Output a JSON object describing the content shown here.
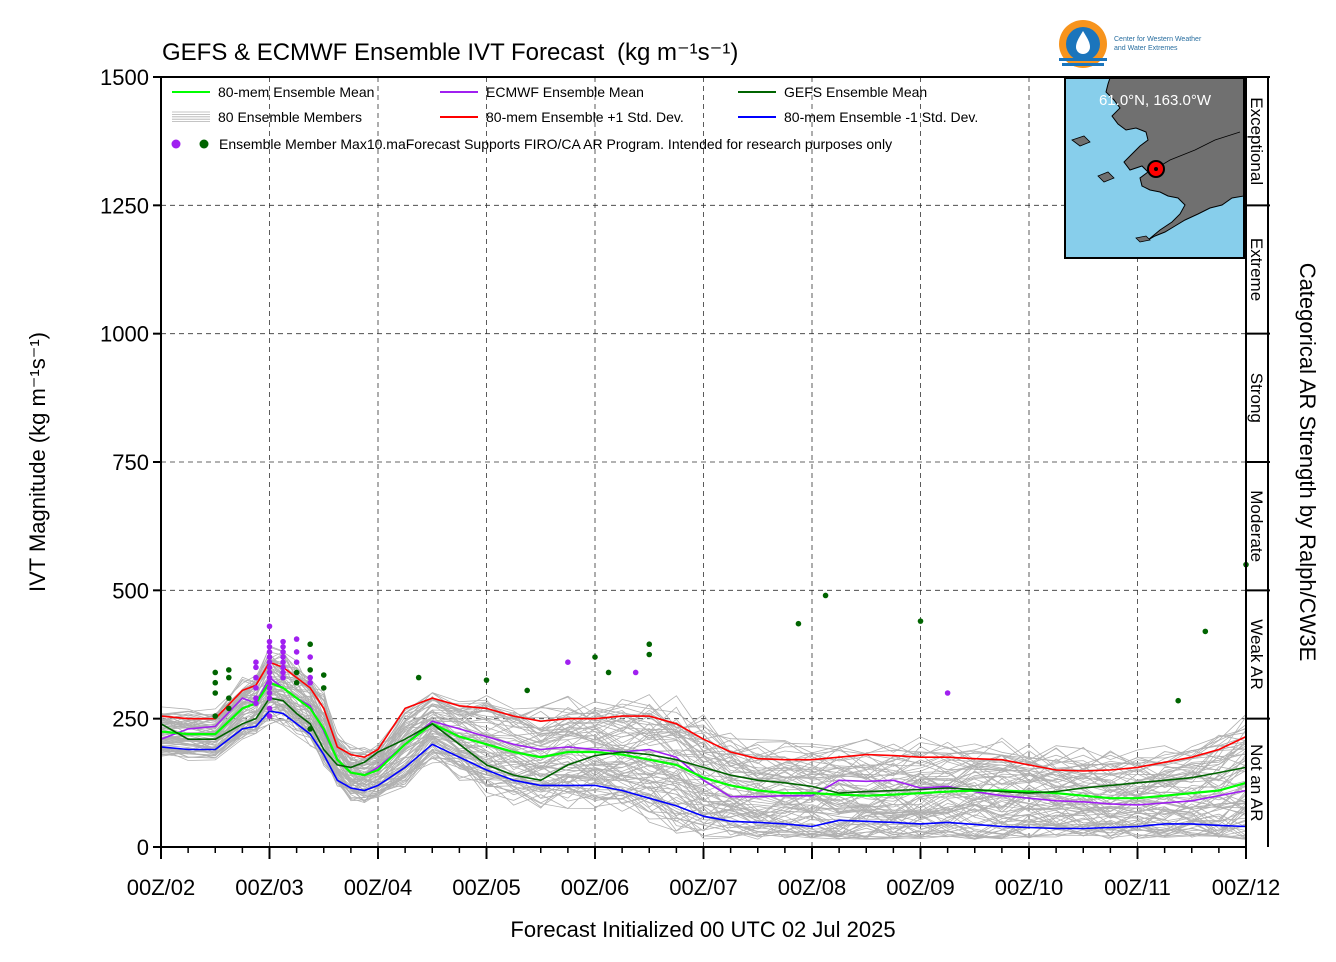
{
  "chart_data": {
    "type": "line",
    "title": "GEFS & ECMWF Ensemble IVT Forecast",
    "title_units": "(kg m⁻¹s⁻¹)",
    "xlabel": "Forecast Initialized 00 UTC 02 Jul 2025",
    "ylabel": "IVT Magnitude (kg m⁻¹s⁻¹)",
    "right_label": "Categorical AR Strength by Ralph/CW3E",
    "ylim": [
      0,
      1500
    ],
    "xlim": [
      0,
      240
    ],
    "yticks": [
      0,
      250,
      500,
      750,
      1000,
      1250,
      1500
    ],
    "xticks": [
      {
        "h": 0,
        "label": "00Z/02"
      },
      {
        "h": 24,
        "label": "00Z/03"
      },
      {
        "h": 48,
        "label": "00Z/04"
      },
      {
        "h": 72,
        "label": "00Z/05"
      },
      {
        "h": 96,
        "label": "00Z/06"
      },
      {
        "h": 120,
        "label": "00Z/07"
      },
      {
        "h": 144,
        "label": "00Z/08"
      },
      {
        "h": 168,
        "label": "00Z/09"
      },
      {
        "h": 192,
        "label": "00Z/10"
      },
      {
        "h": 216,
        "label": "00Z/11"
      },
      {
        "h": 240,
        "label": "00Z/12"
      }
    ],
    "grid": true,
    "categories": [
      {
        "label": "Not an AR",
        "lo": 0,
        "hi": 250
      },
      {
        "label": "Weak AR",
        "lo": 250,
        "hi": 500
      },
      {
        "label": "Moderate",
        "lo": 500,
        "hi": 750
      },
      {
        "label": "Strong",
        "lo": 750,
        "hi": 1000
      },
      {
        "label": "Extreme",
        "lo": 1000,
        "hi": 1250
      },
      {
        "label": "Exceptional",
        "lo": 1250,
        "hi": 1500
      }
    ],
    "legend": {
      "placement": "top-left",
      "items": [
        {
          "label": "80-mem Ensemble Mean",
          "color": "#00ff00",
          "kind": "line"
        },
        {
          "label": "ECMWF Ensemble Mean",
          "color": "#a020f0",
          "kind": "line"
        },
        {
          "label": "GEFS Ensemble Mean",
          "color": "#006400",
          "kind": "line"
        },
        {
          "label": "80 Ensemble Members",
          "color": "#b0b0b0",
          "kind": "members"
        },
        {
          "label": "80-mem Ensemble +1 Std. Dev.",
          "color": "#ff0000",
          "kind": "line"
        },
        {
          "label": "80-mem Ensemble -1 Std. Dev.",
          "color": "#0000ff",
          "kind": "line"
        }
      ],
      "dots_label": "Ensemble Member Max10.maForecast Supports FIRO/CA AR Program. Intended for research purposes only",
      "dot_colors": [
        "#a020f0",
        "#006400"
      ]
    },
    "member_count": 80,
    "member_color": "#b0b0b0",
    "series": [
      {
        "name": "80-mem Ensemble Mean",
        "color": "#00ff00",
        "x": [
          0,
          6,
          12,
          18,
          21,
          24,
          27,
          30,
          33,
          36,
          39,
          42,
          45,
          48,
          54,
          60,
          66,
          72,
          78,
          84,
          90,
          96,
          102,
          108,
          114,
          120,
          126,
          132,
          138,
          144,
          150,
          156,
          162,
          168,
          174,
          180,
          186,
          192,
          198,
          204,
          210,
          216,
          222,
          228,
          234,
          240
        ],
        "values": [
          225,
          220,
          220,
          270,
          280,
          320,
          310,
          290,
          270,
          230,
          170,
          145,
          140,
          150,
          200,
          240,
          215,
          200,
          185,
          175,
          185,
          185,
          180,
          170,
          160,
          135,
          120,
          110,
          105,
          105,
          102,
          100,
          102,
          105,
          108,
          110,
          110,
          108,
          105,
          100,
          95,
          95,
          100,
          105,
          110,
          125
        ]
      },
      {
        "name": "ECMWF Ensemble Mean",
        "color": "#a020f0",
        "x": [
          0,
          6,
          12,
          18,
          21,
          24,
          27,
          30,
          33,
          36,
          39,
          42,
          45,
          48,
          54,
          60,
          66,
          72,
          78,
          84,
          90,
          96,
          102,
          108,
          114,
          120,
          126,
          132,
          138,
          144,
          150,
          156,
          162,
          168,
          174,
          180,
          186,
          192,
          198,
          204,
          210,
          216,
          222,
          228,
          234,
          240
        ],
        "values": [
          210,
          230,
          235,
          290,
          280,
          330,
          310,
          290,
          275,
          225,
          170,
          145,
          140,
          155,
          200,
          245,
          230,
          215,
          200,
          190,
          195,
          190,
          185,
          190,
          175,
          130,
          98,
          98,
          100,
          100,
          130,
          128,
          130,
          115,
          118,
          108,
          100,
          95,
          90,
          88,
          84,
          82,
          86,
          90,
          100,
          110
        ]
      },
      {
        "name": "GEFS Ensemble Mean",
        "color": "#006400",
        "x": [
          0,
          6,
          12,
          18,
          21,
          24,
          27,
          30,
          33,
          36,
          39,
          42,
          45,
          48,
          54,
          60,
          66,
          72,
          78,
          84,
          90,
          96,
          102,
          108,
          114,
          120,
          126,
          132,
          138,
          144,
          150,
          156,
          162,
          168,
          174,
          180,
          186,
          192,
          198,
          204,
          210,
          216,
          222,
          228,
          234,
          240
        ],
        "values": [
          240,
          210,
          210,
          240,
          250,
          290,
          285,
          260,
          240,
          190,
          160,
          155,
          165,
          185,
          210,
          240,
          200,
          160,
          140,
          130,
          160,
          178,
          185,
          180,
          170,
          155,
          140,
          130,
          125,
          118,
          105,
          108,
          110,
          112,
          115,
          112,
          108,
          105,
          108,
          115,
          120,
          125,
          130,
          135,
          145,
          155
        ]
      },
      {
        "name": "80-mem Ensemble +1 Std. Dev.",
        "color": "#ff0000",
        "x": [
          0,
          6,
          12,
          18,
          21,
          24,
          27,
          30,
          33,
          36,
          39,
          42,
          45,
          48,
          54,
          60,
          66,
          72,
          78,
          84,
          90,
          96,
          102,
          108,
          114,
          120,
          126,
          132,
          138,
          144,
          150,
          156,
          162,
          168,
          174,
          180,
          186,
          192,
          198,
          204,
          210,
          216,
          222,
          228,
          234,
          240
        ],
        "values": [
          255,
          250,
          250,
          305,
          315,
          360,
          350,
          330,
          310,
          270,
          195,
          180,
          175,
          190,
          270,
          290,
          275,
          270,
          255,
          245,
          250,
          250,
          255,
          255,
          240,
          210,
          185,
          172,
          170,
          170,
          175,
          180,
          178,
          175,
          175,
          172,
          170,
          160,
          150,
          148,
          150,
          155,
          165,
          175,
          190,
          215
        ]
      },
      {
        "name": "80-mem Ensemble -1 Std. Dev.",
        "color": "#0000ff",
        "x": [
          0,
          6,
          12,
          18,
          21,
          24,
          27,
          30,
          33,
          36,
          39,
          42,
          45,
          48,
          54,
          60,
          66,
          72,
          78,
          84,
          90,
          96,
          102,
          108,
          114,
          120,
          126,
          132,
          138,
          144,
          150,
          156,
          162,
          168,
          174,
          180,
          186,
          192,
          198,
          204,
          210,
          216,
          222,
          228,
          234,
          240
        ],
        "values": [
          195,
          190,
          190,
          230,
          235,
          265,
          260,
          240,
          220,
          180,
          130,
          115,
          110,
          120,
          155,
          200,
          175,
          150,
          130,
          120,
          120,
          120,
          110,
          95,
          80,
          60,
          50,
          48,
          45,
          40,
          52,
          50,
          48,
          45,
          48,
          44,
          40,
          38,
          36,
          36,
          38,
          40,
          45,
          45,
          42,
          40
        ]
      }
    ],
    "max_points": [
      {
        "x": 21,
        "values": [
          360,
          350,
          330,
          310,
          290,
          280
        ],
        "color": "#a020f0"
      },
      {
        "x": 24,
        "values": [
          430,
          400,
          390,
          380,
          370,
          360,
          350,
          340,
          330,
          320,
          310,
          300,
          290,
          270,
          255
        ],
        "color": "#a020f0"
      },
      {
        "x": 27,
        "values": [
          400,
          390,
          380,
          370,
          360,
          350,
          340,
          330
        ],
        "color": "#a020f0"
      },
      {
        "x": 30,
        "values": [
          405,
          380,
          360
        ],
        "color": "#a020f0"
      },
      {
        "x": 33,
        "values": [
          370,
          330,
          320
        ],
        "color": "#a020f0"
      },
      {
        "x": 90,
        "values": [
          360
        ],
        "color": "#a020f0"
      },
      {
        "x": 105,
        "values": [
          340
        ],
        "color": "#a020f0"
      },
      {
        "x": 174,
        "values": [
          300
        ],
        "color": "#a020f0"
      },
      {
        "x": 12,
        "values": [
          340,
          320,
          300,
          255
        ],
        "color": "#006400"
      },
      {
        "x": 15,
        "values": [
          345,
          330,
          290,
          270
        ],
        "color": "#006400"
      },
      {
        "x": 30,
        "values": [
          340,
          320
        ],
        "color": "#006400"
      },
      {
        "x": 33,
        "values": [
          395,
          345,
          230
        ],
        "color": "#006400"
      },
      {
        "x": 36,
        "values": [
          335,
          310
        ],
        "color": "#006400"
      },
      {
        "x": 57,
        "values": [
          330
        ],
        "color": "#006400"
      },
      {
        "x": 72,
        "values": [
          325
        ],
        "color": "#006400"
      },
      {
        "x": 81,
        "values": [
          305
        ],
        "color": "#006400"
      },
      {
        "x": 96,
        "values": [
          370
        ],
        "color": "#006400"
      },
      {
        "x": 99,
        "values": [
          340
        ],
        "color": "#006400"
      },
      {
        "x": 108,
        "values": [
          395,
          375
        ],
        "color": "#006400"
      },
      {
        "x": 141,
        "values": [
          435
        ],
        "color": "#006400"
      },
      {
        "x": 147,
        "values": [
          490
        ],
        "color": "#006400"
      },
      {
        "x": 168,
        "values": [
          440
        ],
        "color": "#006400"
      },
      {
        "x": 225,
        "values": [
          285
        ],
        "color": "#006400"
      },
      {
        "x": 231,
        "values": [
          420
        ],
        "color": "#006400"
      },
      {
        "x": 240,
        "values": [
          550
        ],
        "color": "#006400"
      }
    ],
    "inset_map": {
      "label": "61.0°N, 163.0°W",
      "point": {
        "lat": 61.0,
        "lon": -163.0
      },
      "ocean_color": "#87ceeb",
      "land_color": "#707070"
    }
  },
  "logo": {
    "line1": "Center for Western Weather",
    "line2": "and Water Extremes",
    "colors": {
      "ring_outer": "#f7941d",
      "ring_inner": "#1b75bc"
    }
  }
}
